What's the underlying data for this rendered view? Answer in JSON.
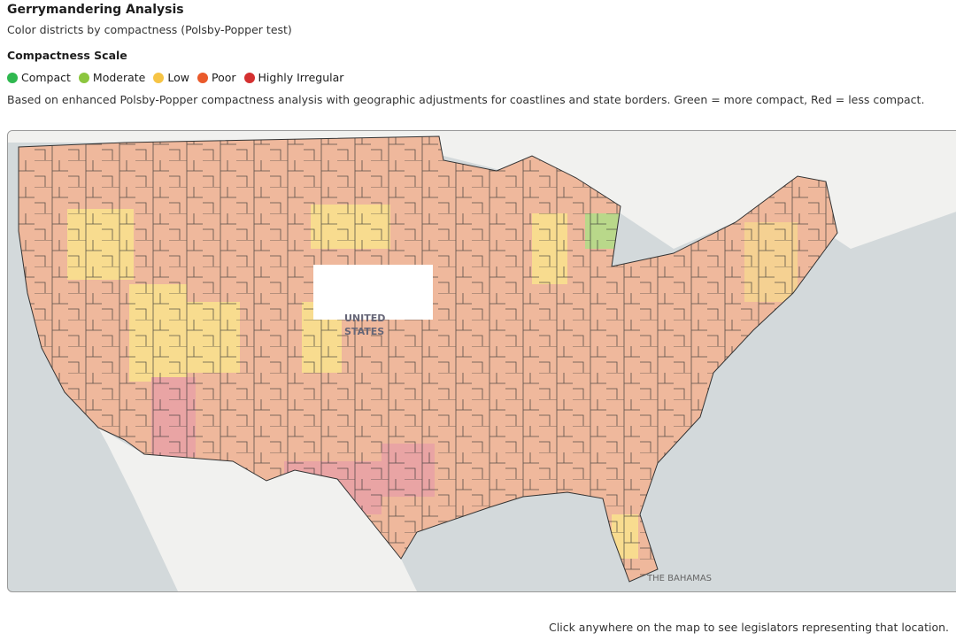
{
  "header": {
    "title": "Gerrymandering Analysis",
    "subtitle": "Color districts by compactness (Polsby-Popper test)"
  },
  "legend": {
    "title": "Compactness Scale",
    "items": [
      {
        "label": "Compact",
        "color": "#2fb84f"
      },
      {
        "label": "Moderate",
        "color": "#8cc63f"
      },
      {
        "label": "Low",
        "color": "#f6c445"
      },
      {
        "label": "Poor",
        "color": "#ea5a2b"
      },
      {
        "label": "Highly Irregular",
        "color": "#d43030"
      }
    ]
  },
  "description": "Based on enhanced Polsby-Popper compactness analysis with geographic adjustments for coastlines and state borders. Green = more compact, Red = less compact.",
  "map": {
    "labels": {
      "country": [
        "UNITED",
        "STATES"
      ],
      "bahamas": "THE BAHAMAS"
    }
  },
  "footer": {
    "hint": "Click anywhere on the map to see legislators representing that location."
  }
}
